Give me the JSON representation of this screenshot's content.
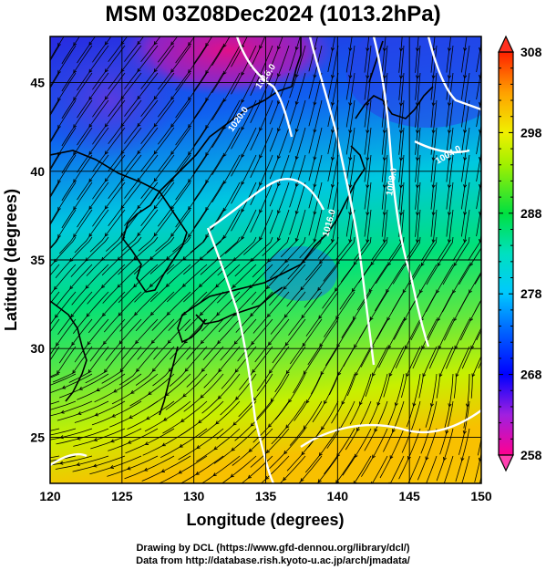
{
  "title": "MSM 03Z08Dec2024 (1013.2hPa)",
  "xlabel": "Longitude (degrees)",
  "ylabel": "Latitude  (degrees)",
  "credit_line1": "Drawing by DCL (https://www.gfd-dennou.org/library/dcl/)",
  "credit_line2": "Data from http://database.rish.kyoto-u.ac.jp/arch/jmadata/",
  "map": {
    "lon_range": [
      120,
      150
    ],
    "lat_range": [
      22.4,
      47.6
    ],
    "lon_ticks": [
      "120",
      "125",
      "130",
      "135",
      "140",
      "145",
      "150"
    ],
    "lat_ticks": [
      "25",
      "30",
      "35",
      "40",
      "45"
    ],
    "lon_tick_values": [
      120,
      125,
      130,
      135,
      140,
      145,
      150
    ],
    "lat_tick_values": [
      25,
      30,
      35,
      40,
      45
    ],
    "grid": true,
    "field": "temperature (K)",
    "colorbar": {
      "min": 258,
      "max": 308,
      "labels": [
        "308",
        "298",
        "288",
        "278",
        "268",
        "258"
      ],
      "label_values": [
        308,
        298,
        288,
        278,
        268,
        258
      ],
      "stops": [
        "#ff0090",
        "#8a2be2",
        "#0000ff",
        "#00aaff",
        "#00e0d0",
        "#00e060",
        "#a0f000",
        "#f0f000",
        "#ffa000",
        "#ff0000"
      ]
    },
    "isobar_labels": [
      "1016.0",
      "1020.0",
      "1016.0",
      "1008.0",
      "1004.0"
    ]
  }
}
